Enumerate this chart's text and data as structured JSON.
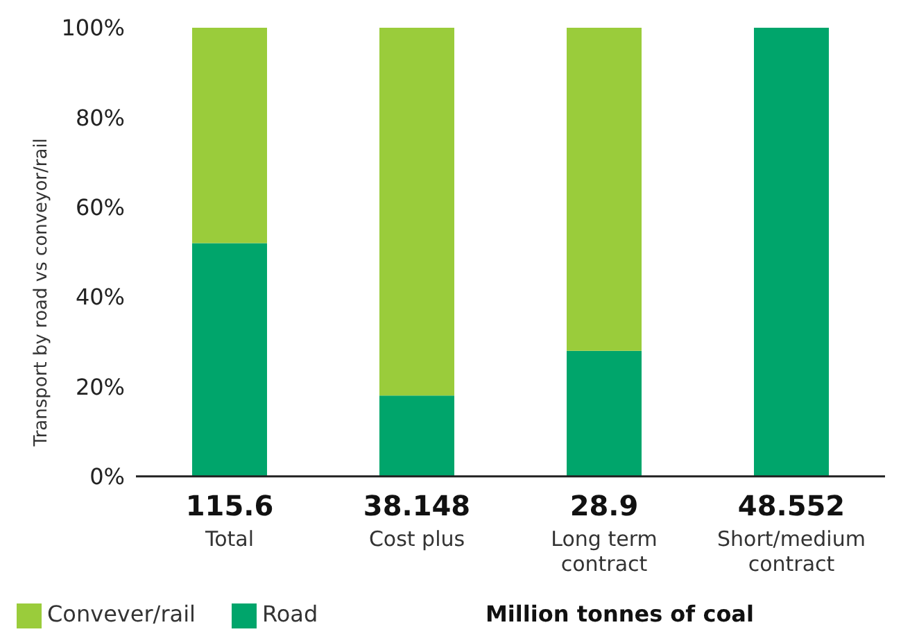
{
  "chart_data": {
    "type": "bar",
    "stacked": true,
    "ylabel": "Transport by road vs conveyor/rail",
    "xlabel": "Million tonnes of coal",
    "categories": [
      "115.6\nTotal",
      "38.148\nCost plus",
      "28.9\nLong term\ncontract",
      "48.552\nShort/medium\ncontract"
    ],
    "series": [
      {
        "name": "Road",
        "color": "#00a56b",
        "values": [
          52,
          18,
          28,
          100
        ]
      },
      {
        "name": "Convever/rail",
        "color": "#9acc3b",
        "values": [
          48,
          82,
          72,
          0
        ]
      }
    ],
    "ylim": [
      0,
      100
    ],
    "yticks": [
      {
        "value": 0,
        "label": "0%"
      },
      {
        "value": 20,
        "label": "20%"
      },
      {
        "value": 40,
        "label": "40%"
      },
      {
        "value": 60,
        "label": "60%"
      },
      {
        "value": 80,
        "label": "80%"
      },
      {
        "value": 100,
        "label": "100%"
      }
    ],
    "grid": false,
    "legend": "bottom"
  }
}
